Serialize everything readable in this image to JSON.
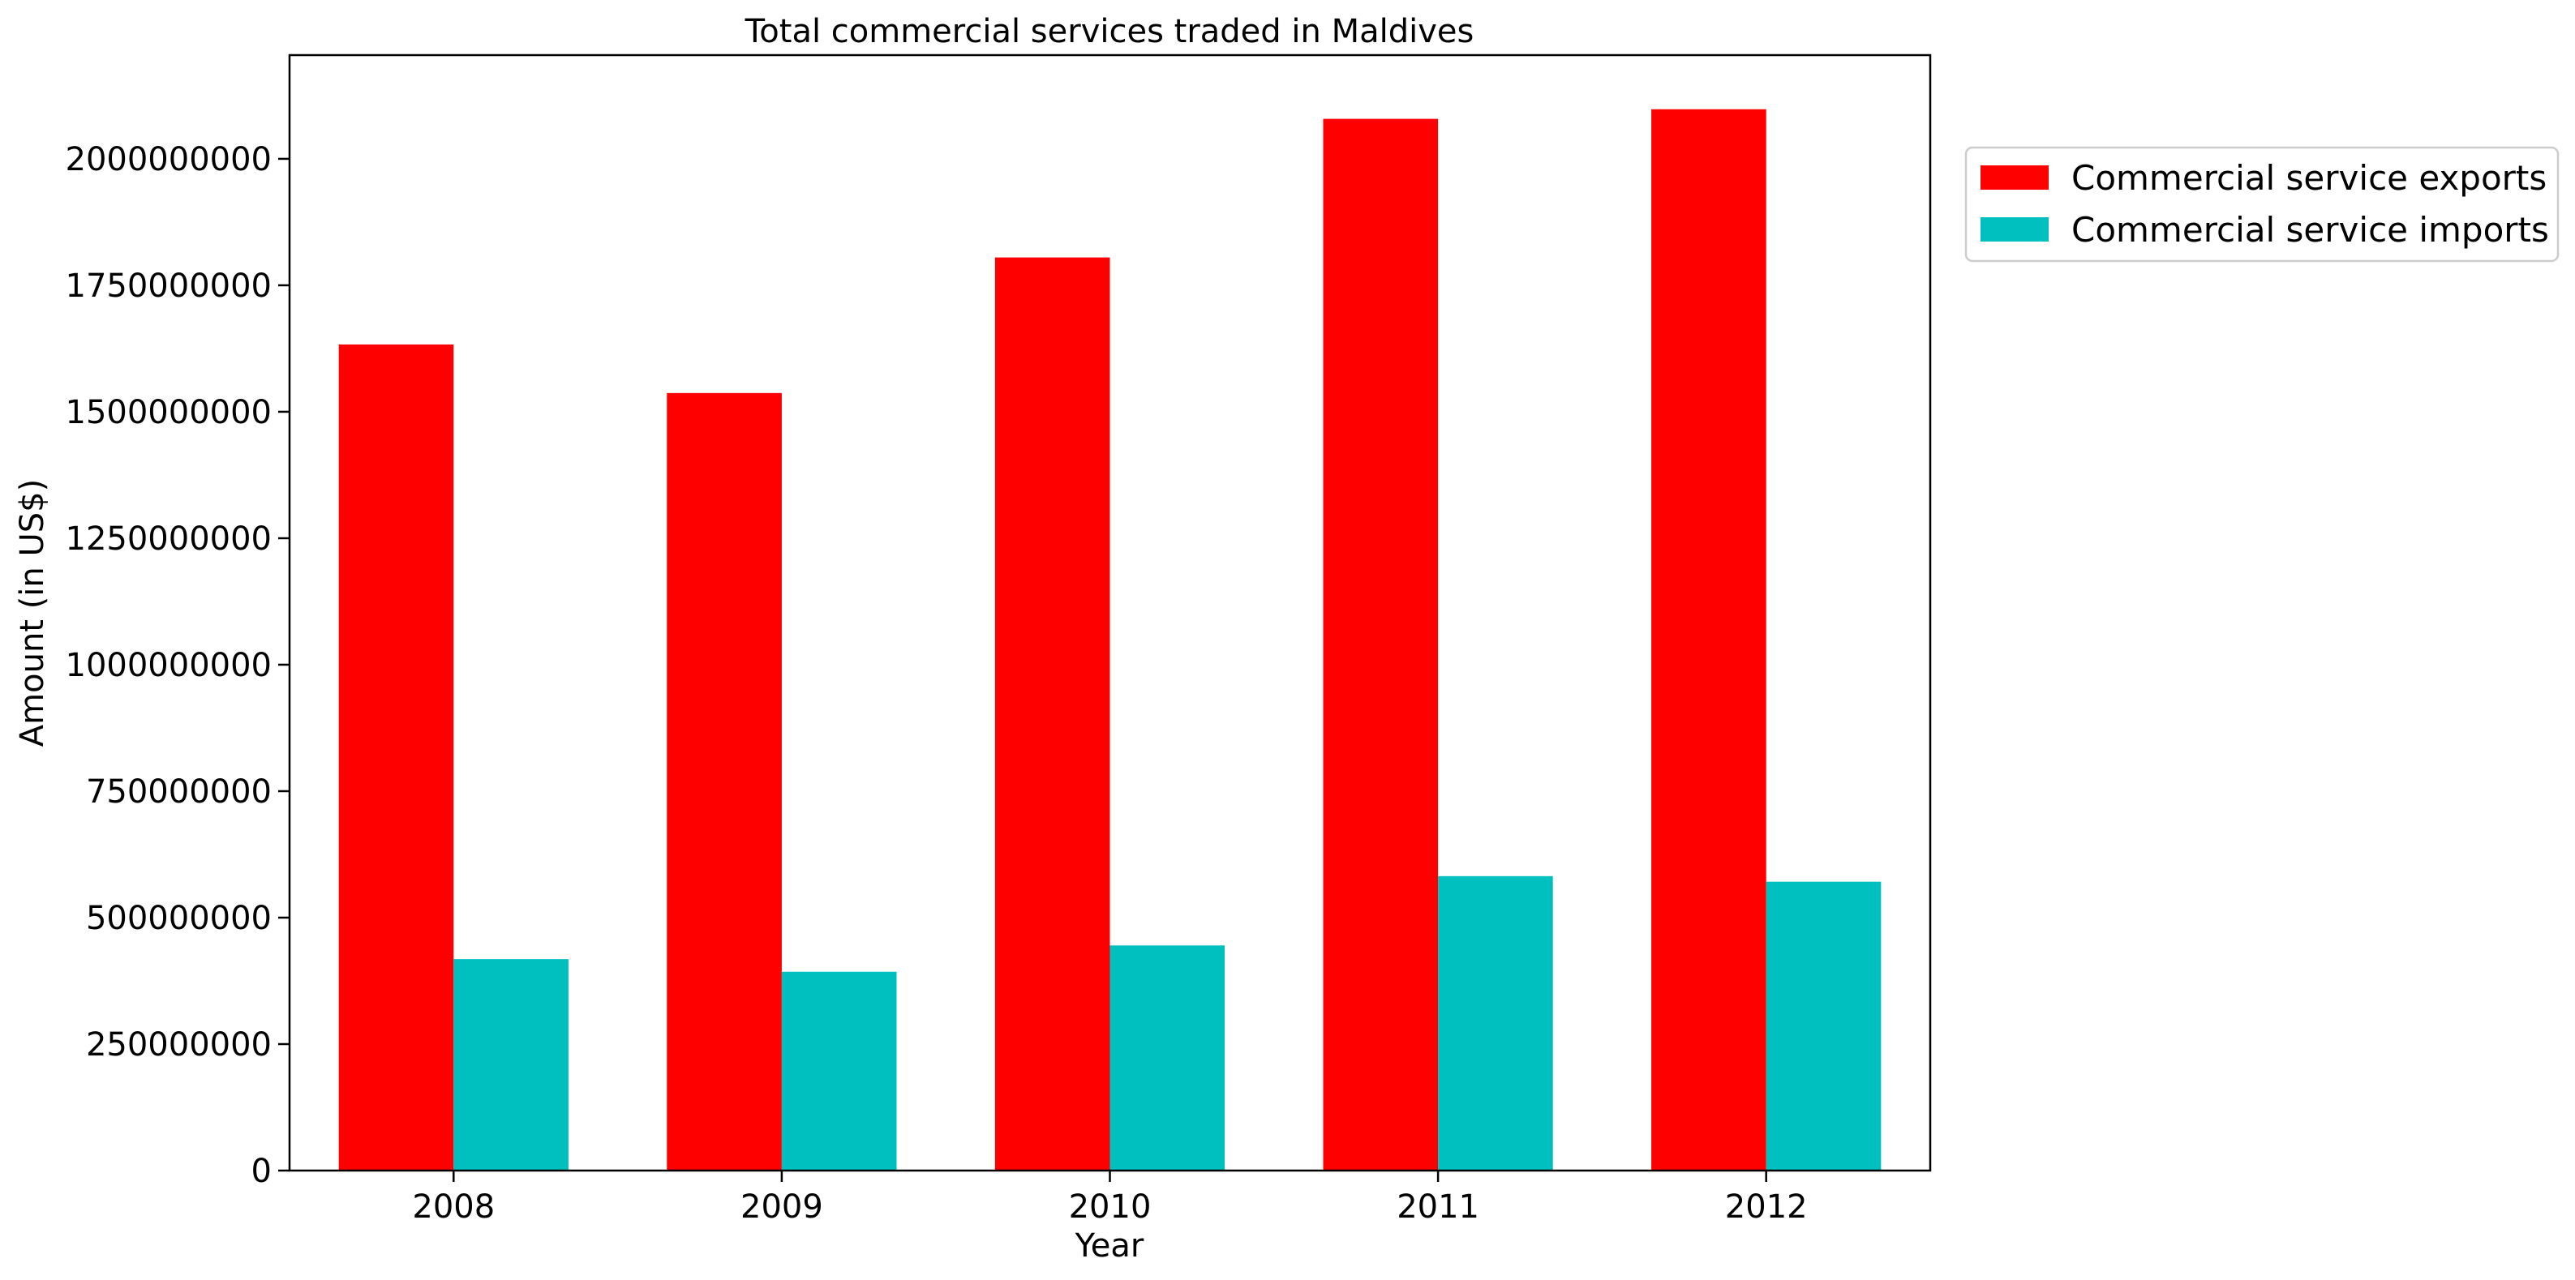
{
  "chart_data": {
    "type": "bar",
    "title": "Total commercial services traded in Maldives",
    "xlabel": "Year",
    "ylabel": "Amount (in US$)",
    "categories": [
      "2008",
      "2009",
      "2010",
      "2011",
      "2012"
    ],
    "series": [
      {
        "name": "Commercial service exports",
        "color": "#ff0000",
        "values": [
          1633000000,
          1537000000,
          1805000000,
          2079000000,
          2098000000
        ]
      },
      {
        "name": "Commercial service imports",
        "color": "#00bfbf",
        "values": [
          418000000,
          393000000,
          445000000,
          582000000,
          571000000
        ]
      }
    ],
    "ylim": [
      0,
      2205000000
    ],
    "yticks": [
      0,
      250000000,
      500000000,
      750000000,
      1000000000,
      1250000000,
      1500000000,
      1750000000,
      2000000000
    ],
    "ytick_labels": [
      "0",
      "250000000",
      "500000000",
      "750000000",
      "1000000000",
      "1250000000",
      "1500000000",
      "1750000000",
      "2000000000"
    ],
    "grid": false,
    "legend_position": "outside-top-right"
  }
}
